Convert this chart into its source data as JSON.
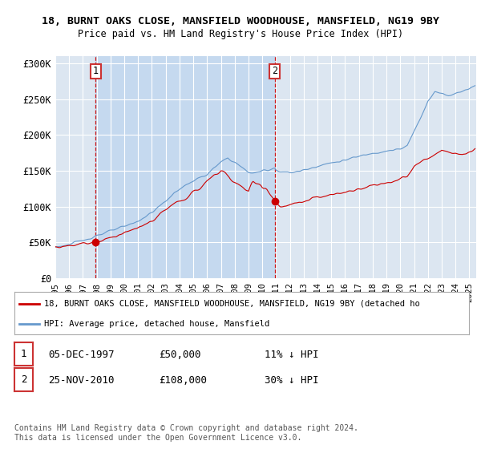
{
  "title_line1": "18, BURNT OAKS CLOSE, MANSFIELD WOODHOUSE, MANSFIELD, NG19 9BY",
  "title_line2": "Price paid vs. HM Land Registry's House Price Index (HPI)",
  "ylim": [
    0,
    310000
  ],
  "yticks": [
    0,
    50000,
    100000,
    150000,
    200000,
    250000,
    300000
  ],
  "ytick_labels": [
    "£0",
    "£50K",
    "£100K",
    "£150K",
    "£200K",
    "£250K",
    "£300K"
  ],
  "xlim_start": 1995.0,
  "xlim_end": 2025.5,
  "bg_color": "#dce6f1",
  "grid_color": "#ffffff",
  "shade_color": "#c5d9ef",
  "sale1_date": 1997.92,
  "sale1_price": 50000,
  "sale2_date": 2010.9,
  "sale2_price": 108000,
  "legend_line1": "18, BURNT OAKS CLOSE, MANSFIELD WOODHOUSE, MANSFIELD, NG19 9BY (detached ho",
  "legend_line2": "HPI: Average price, detached house, Mansfield",
  "annotation1_date": "05-DEC-1997",
  "annotation1_price": "£50,000",
  "annotation1_hpi": "11% ↓ HPI",
  "annotation2_date": "25-NOV-2010",
  "annotation2_price": "£108,000",
  "annotation2_hpi": "30% ↓ HPI",
  "footer": "Contains HM Land Registry data © Crown copyright and database right 2024.\nThis data is licensed under the Open Government Licence v3.0.",
  "house_line_color": "#cc0000",
  "hpi_line_color": "#6699cc",
  "sale_marker_color": "#cc0000",
  "dashed_line_color": "#cc0000"
}
